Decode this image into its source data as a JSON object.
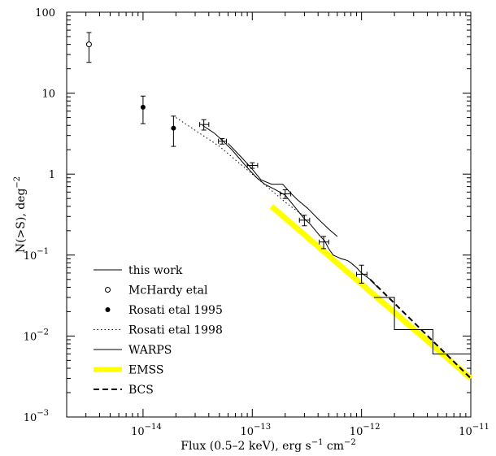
{
  "chart_data": {
    "type": "line",
    "xscale": "log",
    "yscale": "log",
    "xlim": [
      2e-15,
      1e-11
    ],
    "ylim": [
      0.001,
      100
    ],
    "xlabel_parts": [
      "Flux (0.5–2 keV), erg s",
      "−1",
      " cm",
      "−2"
    ],
    "ylabel_parts": [
      "N(>S), deg",
      "−2"
    ],
    "x_ticks": [
      {
        "value": 1e-14,
        "mant": "10",
        "exp": "−14"
      },
      {
        "value": 1e-13,
        "mant": "10",
        "exp": "−13"
      },
      {
        "value": 1e-12,
        "mant": "10",
        "exp": "−12"
      },
      {
        "value": 1e-11,
        "mant": "10",
        "exp": "−11"
      }
    ],
    "y_ticks": [
      {
        "value": 100,
        "mant": "100",
        "exp": ""
      },
      {
        "value": 10,
        "mant": "10",
        "exp": ""
      },
      {
        "value": 1,
        "mant": "1",
        "exp": ""
      },
      {
        "value": 0.1,
        "mant": "10",
        "exp": "−1"
      },
      {
        "value": 0.01,
        "mant": "10",
        "exp": "−2"
      },
      {
        "value": 0.001,
        "mant": "10",
        "exp": "−3"
      }
    ],
    "legend": [
      {
        "label": "this work",
        "style": "solid"
      },
      {
        "label": "McHardy etal",
        "style": "open-circle"
      },
      {
        "label": "Rosati etal 1995",
        "style": "filled-circle"
      },
      {
        "label": "Rosati etal 1998",
        "style": "dotted"
      },
      {
        "label": "WARPS",
        "style": "solid"
      },
      {
        "label": "EMSS",
        "style": "thick-yellow"
      },
      {
        "label": "BCS",
        "style": "dashed"
      }
    ],
    "series": [
      {
        "name": "this work",
        "kind": "line",
        "color": "#000000",
        "x": [
          3e-13,
          3.4e-13,
          3.8e-13,
          4.2e-13,
          4.6e-13,
          5e-13,
          5.5e-13,
          6e-13,
          6.5e-13,
          7e-13,
          7.5e-13,
          8e-13,
          9e-13,
          1e-12,
          1.2e-12,
          1.4e-12
        ],
        "y": [
          0.28,
          0.24,
          0.2,
          0.17,
          0.15,
          0.12,
          0.1,
          0.095,
          0.09,
          0.088,
          0.085,
          0.08,
          0.07,
          0.06,
          0.05,
          0.04
        ]
      },
      {
        "name": "this work (fit)",
        "kind": "line",
        "color": "#000000",
        "x": [
          3.5e-14,
          4.5e-14,
          5.5e-14,
          6.5e-14,
          7.5e-14,
          9e-14,
          1.1e-13,
          1.3e-13,
          1.6e-13,
          2e-13,
          2.5e-13,
          3e-13
        ],
        "y": [
          4.0,
          3.2,
          2.5,
          2.0,
          1.6,
          1.2,
          0.9,
          0.75,
          0.65,
          0.55,
          0.38,
          0.28
        ]
      },
      {
        "name": "WARPS",
        "kind": "line",
        "color": "#000000",
        "x": [
          6e-14,
          8e-14,
          1e-13,
          1.2e-13,
          1.5e-13,
          1.9e-13,
          2.2e-13,
          2.6e-13,
          3.2e-13,
          4e-13,
          5e-13,
          6e-13
        ],
        "y": [
          2.4,
          1.6,
          1.15,
          0.85,
          0.75,
          0.75,
          0.6,
          0.48,
          0.38,
          0.28,
          0.21,
          0.17
        ]
      },
      {
        "name": "Rosati etal 1998",
        "kind": "dotted",
        "color": "#000000",
        "x": [
          2e-14,
          5e-14,
          1e-13,
          2e-13,
          3e-13
        ],
        "y": [
          5.0,
          2.2,
          1.0,
          0.45,
          0.3
        ]
      },
      {
        "name": "EMSS",
        "kind": "thick",
        "color": "#ffff00",
        "x": [
          1.5e-13,
          1e-11
        ],
        "y": [
          0.4,
          0.003
        ]
      },
      {
        "name": "BCS",
        "kind": "dashed",
        "color": "#000000",
        "x": [
          1.2e-12,
          1e-11
        ],
        "y": [
          0.05,
          0.003
        ]
      },
      {
        "name": "step",
        "kind": "step",
        "color": "#000000",
        "x": [
          1.3e-12,
          2e-12,
          4.5e-12,
          1e-11
        ],
        "y": [
          0.03,
          0.012,
          0.006,
          0.006
        ]
      }
    ],
    "points": [
      {
        "series": "McHardy etal",
        "marker": "open",
        "x": 3.2e-15,
        "y": 40,
        "ylo": 24,
        "yhi": 56
      },
      {
        "series": "Rosati etal 1995",
        "marker": "filled",
        "x": 1e-14,
        "y": 6.7,
        "ylo": 4.2,
        "yhi": 9.2
      },
      {
        "series": "Rosati etal 1995",
        "marker": "filled",
        "x": 1.9e-14,
        "y": 3.7,
        "ylo": 2.2,
        "yhi": 5.2
      },
      {
        "series": "this work",
        "marker": "bar",
        "x": 3.6e-14,
        "y": 4.1,
        "ylo": 3.5,
        "yhi": 4.7,
        "xlo": 3.3e-14,
        "xhi": 4e-14
      },
      {
        "series": "this work",
        "marker": "bar",
        "x": 5.3e-14,
        "y": 2.55,
        "ylo": 2.35,
        "yhi": 2.75,
        "xlo": 4.9e-14,
        "xhi": 5.8e-14
      },
      {
        "series": "this work",
        "marker": "bar",
        "x": 1e-13,
        "y": 1.28,
        "ylo": 1.18,
        "yhi": 1.38,
        "xlo": 9e-14,
        "xhi": 1.12e-13
      },
      {
        "series": "this work",
        "marker": "bar",
        "x": 2e-13,
        "y": 0.57,
        "ylo": 0.5,
        "yhi": 0.64,
        "xlo": 1.8e-13,
        "xhi": 2.25e-13
      },
      {
        "series": "this work",
        "marker": "bar",
        "x": 3e-13,
        "y": 0.27,
        "ylo": 0.23,
        "yhi": 0.31,
        "xlo": 2.7e-13,
        "xhi": 3.35e-13
      },
      {
        "series": "this work",
        "marker": "bar",
        "x": 4.5e-13,
        "y": 0.145,
        "ylo": 0.12,
        "yhi": 0.17,
        "xlo": 4.1e-13,
        "xhi": 5e-13
      },
      {
        "series": "this work",
        "marker": "bar",
        "x": 1e-12,
        "y": 0.058,
        "ylo": 0.045,
        "yhi": 0.075,
        "xlo": 9e-13,
        "xhi": 1.12e-12
      }
    ]
  }
}
